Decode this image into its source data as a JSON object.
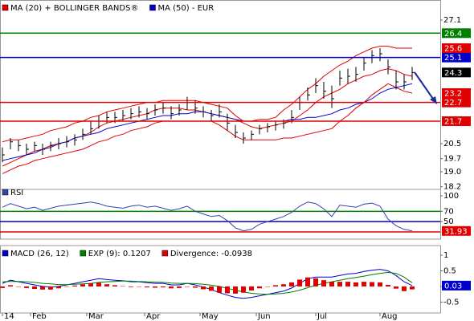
{
  "chart_data": [
    {
      "type": "ohlc",
      "x": [
        0,
        1,
        2,
        3,
        4,
        5,
        6,
        7,
        8,
        9,
        10,
        11,
        12,
        13,
        14,
        15,
        16,
        17,
        18,
        19,
        20,
        21,
        22,
        23,
        24,
        25,
        26,
        27,
        28,
        29,
        30,
        31,
        32,
        33,
        34,
        35,
        36,
        37,
        38,
        39,
        40,
        41,
        42,
        43,
        44,
        45,
        46,
        47,
        48,
        49,
        50,
        51
      ],
      "xlim": [
        -0.3,
        54.5
      ],
      "ylim": [
        18.08,
        28.17
      ],
      "yticks": [
        27.1,
        20.5,
        19.7,
        {
          "value": 19,
          "label": "19.0"
        },
        18.2
      ],
      "bar_color": "#000000",
      "close": [
        19.9,
        20.6,
        20.4,
        20.2,
        20.4,
        20.2,
        20.4,
        20.5,
        20.6,
        20.7,
        21.0,
        21.3,
        21.7,
        21.9,
        21.9,
        22.0,
        22.1,
        22.2,
        22.1,
        22.3,
        22.4,
        22.1,
        22.3,
        22.7,
        22.4,
        22.2,
        22.0,
        22.2,
        21.6,
        21.1,
        20.8,
        21.0,
        21.3,
        21.4,
        21.5,
        21.6,
        21.9,
        22.7,
        23.1,
        23.6,
        23.3,
        22.9,
        24.0,
        24.1,
        24.2,
        24.8,
        25.2,
        25.3,
        24.6,
        23.8,
        23.8,
        24.3
      ],
      "high": [
        20.3,
        20.8,
        20.7,
        20.5,
        20.6,
        20.5,
        20.6,
        20.8,
        20.9,
        21.0,
        21.3,
        21.7,
        22.0,
        22.2,
        22.2,
        22.3,
        22.4,
        22.5,
        22.4,
        22.6,
        22.7,
        22.5,
        22.6,
        23.0,
        22.8,
        22.5,
        22.3,
        22.6,
        22.1,
        21.5,
        21.1,
        21.2,
        21.5,
        21.6,
        21.7,
        21.8,
        22.3,
        23.0,
        23.5,
        24.0,
        23.8,
        23.6,
        24.4,
        24.5,
        24.6,
        25.1,
        25.5,
        25.6,
        25.0,
        24.4,
        24.2,
        24.6
      ],
      "low": [
        19.5,
        20.2,
        20.1,
        19.9,
        20.1,
        19.9,
        20.1,
        20.2,
        20.3,
        20.4,
        20.7,
        21.0,
        21.3,
        21.6,
        21.6,
        21.7,
        21.8,
        21.9,
        21.8,
        22.0,
        22.1,
        21.8,
        22.0,
        22.3,
        22.1,
        21.9,
        21.7,
        21.9,
        21.2,
        20.8,
        20.5,
        20.7,
        21.0,
        21.1,
        21.2,
        21.3,
        21.6,
        22.3,
        22.8,
        23.2,
        22.9,
        22.4,
        23.6,
        23.7,
        23.8,
        24.4,
        24.8,
        24.9,
        24.2,
        23.4,
        23.4,
        23.9
      ],
      "series": [
        {
          "name": "MA (20) + BOLLINGER BANDS®",
          "color": "#e00000",
          "values": [
            19.3,
            19.5,
            19.7,
            19.9,
            20.1,
            20.2,
            20.4,
            20.5,
            20.6,
            20.8,
            20.9,
            21.1,
            21.4,
            21.6,
            21.7,
            21.8,
            21.9,
            22.0,
            22.1,
            22.3,
            22.4,
            22.4,
            22.4,
            22.3,
            22.3,
            22.2,
            22.1,
            22.0,
            21.9,
            21.8,
            21.6,
            21.4,
            21.3,
            21.4,
            21.5,
            21.6,
            21.7,
            22.0,
            22.3,
            22.7,
            23.0,
            23.2,
            23.4,
            23.7,
            23.9,
            24.1,
            24.2,
            24.4,
            24.5,
            24.4,
            24.2,
            24.1
          ]
        },
        {
          "name": "MA (50) - EUR",
          "color": "#0000cc",
          "values": [
            19.6,
            19.7,
            19.8,
            19.9,
            20.0,
            20.2,
            20.3,
            20.5,
            20.6,
            20.8,
            20.9,
            21.0,
            21.1,
            21.3,
            21.4,
            21.5,
            21.6,
            21.7,
            21.8,
            21.9,
            22.0,
            22.0,
            22.1,
            22.1,
            22.2,
            22.2,
            22.1,
            22.0,
            21.9,
            21.8,
            21.7,
            21.7,
            21.7,
            21.7,
            21.7,
            21.7,
            21.8,
            21.8,
            21.9,
            21.9,
            22.0,
            22.1,
            22.3,
            22.4,
            22.6,
            22.7,
            22.9,
            23.2,
            23.4,
            23.5,
            23.6,
            23.7
          ]
        }
      ],
      "bands": {
        "color": "#e00000",
        "upper": [
          20.6,
          20.7,
          20.7,
          20.8,
          20.9,
          21.0,
          21.2,
          21.3,
          21.4,
          21.6,
          21.7,
          21.9,
          22.0,
          22.2,
          22.3,
          22.4,
          22.5,
          22.6,
          22.7,
          22.7,
          22.8,
          22.8,
          22.8,
          22.8,
          22.8,
          22.7,
          22.6,
          22.5,
          22.4,
          22.0,
          21.7,
          21.7,
          21.8,
          21.8,
          21.9,
          22.3,
          22.6,
          23.0,
          23.4,
          23.7,
          24.1,
          24.4,
          24.7,
          24.9,
          25.2,
          25.4,
          25.6,
          25.7,
          25.7,
          25.6,
          25.6,
          25.6
        ],
        "lower": [
          18.9,
          19.1,
          19.3,
          19.4,
          19.6,
          19.7,
          19.8,
          19.9,
          20.0,
          20.1,
          20.2,
          20.4,
          20.6,
          20.7,
          20.9,
          21.0,
          21.2,
          21.3,
          21.4,
          21.6,
          21.7,
          21.7,
          21.7,
          21.7,
          21.7,
          21.7,
          21.7,
          21.5,
          21.2,
          20.9,
          20.7,
          20.7,
          20.7,
          20.7,
          20.7,
          20.8,
          20.8,
          20.9,
          21.0,
          21.1,
          21.2,
          21.3,
          21.7,
          22.0,
          22.4,
          22.7,
          23.1,
          23.4,
          23.7,
          23.5,
          23.3,
          23.2
        ]
      },
      "levels": [
        {
          "value": 26.4,
          "color": "#008000"
        },
        {
          "value": 25.1,
          "color": "#0000cc"
        },
        {
          "value": 22.7,
          "color": "#e00000"
        },
        {
          "value": 21.7,
          "color": "#e00000"
        }
      ],
      "price_labels": [
        {
          "value": 25.6,
          "color": "#e00000"
        },
        {
          "value": 24.3,
          "color": "#000000"
        },
        {
          "value": 23.2,
          "color": "#e00000"
        }
      ]
    },
    {
      "type": "line",
      "title": "RSI",
      "ylim": [
        16,
        112.6
      ],
      "yticks": [
        100,
        70,
        50
      ],
      "levels": [
        {
          "value": 70,
          "color": "#008000"
        },
        {
          "value": 50,
          "color": "#0000cc"
        },
        {
          "value": 30,
          "color": "#e00000"
        }
      ],
      "label_color": "#e00000",
      "series": [
        {
          "color": "#3344aa",
          "values": [
            78,
            85,
            80,
            75,
            78,
            72,
            76,
            80,
            82,
            84,
            86,
            88,
            85,
            80,
            78,
            76,
            80,
            82,
            78,
            80,
            76,
            72,
            75,
            80,
            70,
            65,
            60,
            62,
            52,
            38,
            32,
            35,
            45,
            50,
            55,
            60,
            68,
            80,
            88,
            85,
            75,
            60,
            82,
            80,
            78,
            84,
            86,
            80,
            55,
            42,
            35,
            31.93
          ]
        }
      ]
    },
    {
      "type": "macd",
      "ylim": [
        -0.85,
        1.31
      ],
      "yticks": [
        1,
        0.5,
        0,
        -0.5
      ],
      "xticks": [
        {
          "value": 0,
          "label": "14"
        },
        {
          "value": 3.5,
          "label": "Feb"
        },
        {
          "value": 10.5,
          "label": "Mar"
        },
        {
          "value": 17.7,
          "label": "Apr"
        },
        {
          "value": 24.6,
          "label": "May"
        },
        {
          "value": 31.6,
          "label": "Jun"
        },
        {
          "value": 39,
          "label": "Jul"
        },
        {
          "value": 47,
          "label": "Aug"
        }
      ],
      "series": [
        {
          "name": "MACD (26, 12)",
          "color": "#0000cc",
          "last_label": "0.03",
          "values": [
            0.1,
            0.2,
            0.15,
            0.1,
            0.05,
            0.0,
            -0.02,
            0.0,
            0.05,
            0.1,
            0.15,
            0.2,
            0.25,
            0.22,
            0.2,
            0.18,
            0.15,
            0.15,
            0.12,
            0.1,
            0.1,
            0.05,
            0.05,
            0.1,
            0.05,
            -0.02,
            -0.1,
            -0.2,
            -0.28,
            -0.35,
            -0.38,
            -0.35,
            -0.3,
            -0.25,
            -0.2,
            -0.15,
            -0.05,
            0.1,
            0.25,
            0.3,
            0.3,
            0.3,
            0.35,
            0.4,
            0.42,
            0.48,
            0.52,
            0.55,
            0.5,
            0.35,
            0.15,
            0.0269
          ]
        },
        {
          "name": "EXP (9): 0.1207",
          "color": "#008000",
          "values": [
            0.15,
            0.16,
            0.16,
            0.15,
            0.13,
            0.1,
            0.08,
            0.06,
            0.06,
            0.07,
            0.08,
            0.1,
            0.13,
            0.15,
            0.16,
            0.17,
            0.17,
            0.16,
            0.15,
            0.14,
            0.13,
            0.11,
            0.1,
            0.1,
            0.09,
            0.07,
            0.04,
            0.0,
            -0.06,
            -0.12,
            -0.18,
            -0.22,
            -0.24,
            -0.25,
            -0.24,
            -0.22,
            -0.18,
            -0.12,
            -0.04,
            0.04,
            0.1,
            0.15,
            0.2,
            0.25,
            0.29,
            0.33,
            0.38,
            0.42,
            0.45,
            0.42,
            0.3,
            0.1207
          ]
        },
        {
          "name": "Divergence: -0.0938",
          "color": "#e00000",
          "bars": true,
          "values": [
            -0.05,
            0.04,
            -0.01,
            -0.05,
            -0.08,
            -0.1,
            -0.1,
            -0.06,
            -0.01,
            0.03,
            0.07,
            0.1,
            0.12,
            0.07,
            0.04,
            0.01,
            -0.02,
            -0.01,
            -0.03,
            -0.04,
            -0.03,
            -0.06,
            -0.05,
            0.0,
            -0.04,
            -0.09,
            -0.14,
            -0.2,
            -0.22,
            -0.23,
            -0.2,
            -0.13,
            -0.06,
            0.0,
            0.04,
            0.07,
            0.13,
            0.22,
            0.29,
            0.26,
            0.2,
            0.15,
            0.15,
            0.15,
            0.13,
            0.15,
            0.14,
            0.13,
            0.05,
            -0.07,
            -0.15,
            -0.0938
          ]
        }
      ]
    }
  ]
}
